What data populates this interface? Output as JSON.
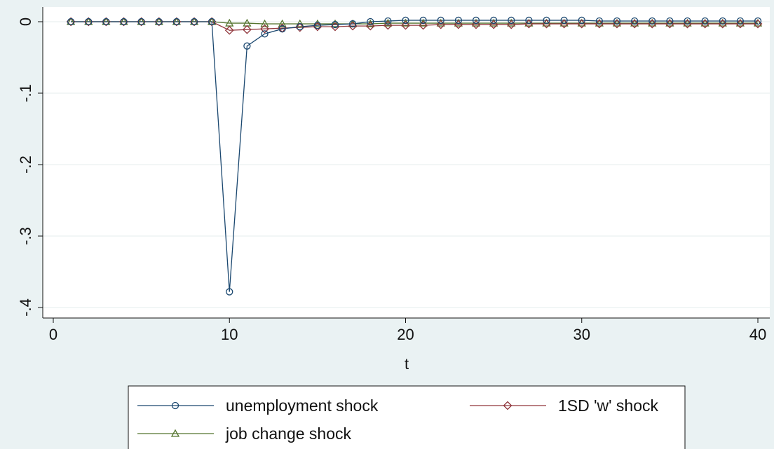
{
  "chart_data": {
    "type": "line",
    "title": "",
    "xlabel": "t",
    "ylabel": "",
    "xlim": [
      0,
      40
    ],
    "ylim": [
      -0.4,
      0
    ],
    "xticks": [
      0,
      10,
      20,
      30,
      40
    ],
    "xtick_labels": [
      "0",
      "10",
      "20",
      "30",
      "40"
    ],
    "yticks": [
      0,
      -0.1,
      -0.2,
      -0.3,
      -0.4
    ],
    "ytick_labels": [
      "0",
      "-.1",
      "-.2",
      "-.3",
      "-.4"
    ],
    "grid": true,
    "legend_position": "bottom",
    "x": [
      1,
      2,
      3,
      4,
      5,
      6,
      7,
      8,
      9,
      10,
      11,
      12,
      13,
      14,
      15,
      16,
      17,
      18,
      19,
      20,
      21,
      22,
      23,
      24,
      25,
      26,
      27,
      28,
      29,
      30,
      31,
      32,
      33,
      34,
      35,
      36,
      37,
      38,
      39,
      40
    ],
    "series": [
      {
        "name": "unemployment shock",
        "color": "#1a476f",
        "marker": "circle",
        "values": [
          0,
          0,
          0,
          0,
          0,
          0,
          0,
          0,
          0,
          -0.378,
          -0.034,
          -0.017,
          -0.01,
          -0.007,
          -0.005,
          -0.004,
          -0.003,
          0,
          0.001,
          0.002,
          0.002,
          0.002,
          0.002,
          0.002,
          0.002,
          0.002,
          0.002,
          0.002,
          0.002,
          0.002,
          0.001,
          0.001,
          0.001,
          0.001,
          0.001,
          0.001,
          0.001,
          0.001,
          0.001,
          0.001
        ]
      },
      {
        "name": "1SD 'w' shock",
        "color": "#90353b",
        "marker": "diamond",
        "values": [
          0,
          0,
          0,
          0,
          0,
          0,
          0,
          0,
          0,
          -0.012,
          -0.011,
          -0.01,
          -0.009,
          -0.008,
          -0.007,
          -0.007,
          -0.006,
          -0.006,
          -0.005,
          -0.005,
          -0.005,
          -0.004,
          -0.004,
          -0.004,
          -0.004,
          -0.004,
          -0.003,
          -0.003,
          -0.003,
          -0.003,
          -0.003,
          -0.003,
          -0.003,
          -0.003,
          -0.003,
          -0.003,
          -0.003,
          -0.003,
          -0.003,
          -0.003
        ]
      },
      {
        "name": "job change shock",
        "color": "#55752f",
        "marker": "triangle",
        "values": [
          0,
          0,
          0,
          0,
          0,
          0,
          0,
          0,
          0,
          -0.002,
          -0.002,
          -0.003,
          -0.003,
          -0.003,
          -0.003,
          -0.003,
          -0.003,
          -0.003,
          -0.002,
          -0.002,
          -0.002,
          -0.002,
          -0.002,
          -0.002,
          -0.002,
          -0.002,
          -0.002,
          -0.002,
          -0.002,
          -0.002,
          -0.002,
          -0.002,
          -0.002,
          -0.002,
          -0.002,
          -0.002,
          -0.002,
          -0.002,
          -0.002,
          -0.002
        ]
      }
    ]
  }
}
